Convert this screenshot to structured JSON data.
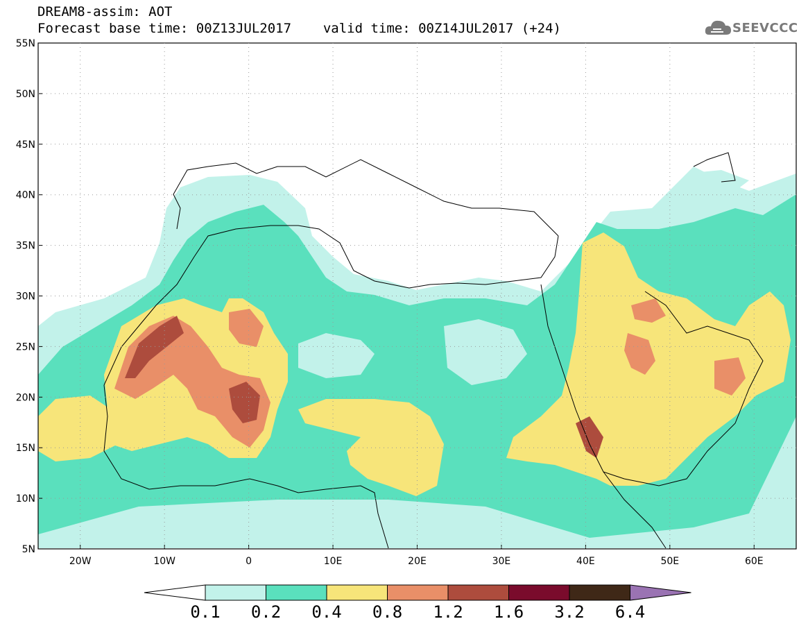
{
  "header": {
    "title": "DREAM8-assim: AOT",
    "base_time": "Forecast base time: 00Z13JUL2017",
    "valid_time": "valid time: 00Z14JUL2017 (+24)"
  },
  "logo": {
    "text": "SEEVCCC",
    "icon": "cloud-icon"
  },
  "map": {
    "lat_ticks": [
      "55N",
      "50N",
      "45N",
      "40N",
      "35N",
      "30N",
      "25N",
      "20N",
      "15N",
      "10N",
      "5N"
    ],
    "lon_ticks": [
      "20W",
      "10W",
      "0",
      "10E",
      "20E",
      "30E",
      "40E",
      "50E",
      "60E"
    ]
  },
  "colorbar": {
    "labels": [
      "0.1",
      "0.2",
      "0.4",
      "0.8",
      "1.2",
      "1.6",
      "3.2",
      "6.4"
    ],
    "colors": [
      "#ffffff",
      "#c2f2ea",
      "#5ae0bd",
      "#f7e57a",
      "#e98f68",
      "#ad4c3d",
      "#7a0b2c",
      "#3f2817",
      "#9a73b3"
    ]
  },
  "palette": {
    "very_low": "#c2f2ea",
    "low": "#5ae0bd",
    "moderate": "#f7e57a",
    "high": "#e98f68",
    "very_high": "#ad4c3d"
  }
}
